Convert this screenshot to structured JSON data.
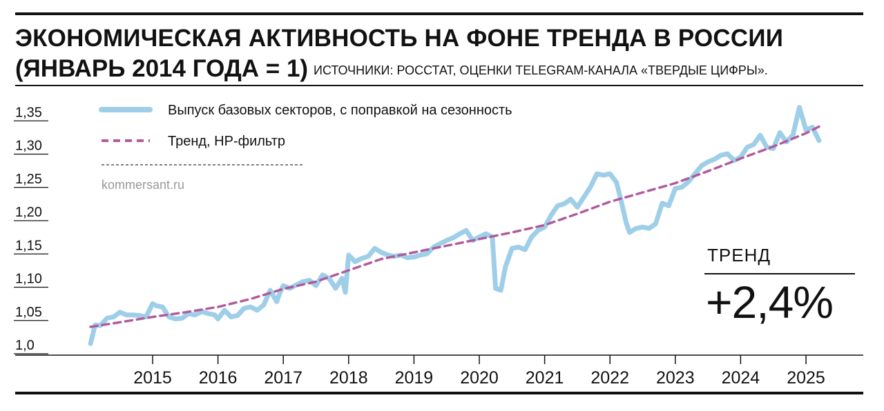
{
  "header": {
    "title": "ЭКОНОМИЧЕСКАЯ АКТИВНОСТЬ НА ФОНЕ ТРЕНДА В РОССИИ",
    "subtitle": "(ЯНВАРЬ 2014 ГОДА = 1)",
    "source": "ИСТОЧНИКИ: РОССТАТ, ОЦЕНКИ TELEGRAM-КАНАЛА «ТВЕРДЫЕ ЦИФРЫ»."
  },
  "watermark": "kommersant.ru",
  "trend_box": {
    "label": "ТРЕНД",
    "value": "+2,4%"
  },
  "colors": {
    "output": "#9fcfe8",
    "trend": "#b15a9e",
    "text": "#111111"
  },
  "chart_data": {
    "type": "line",
    "title": "",
    "xlabel": "",
    "ylabel": "",
    "xlim": [
      2014.0,
      2025.8
    ],
    "ylim": [
      1.0,
      1.37
    ],
    "y_ticks": [
      1.0,
      1.05,
      1.1,
      1.15,
      1.2,
      1.25,
      1.3,
      1.35
    ],
    "y_tick_labels": [
      "1,0",
      "1,05",
      "1,10",
      "1,15",
      "1,20",
      "1,25",
      "1,30",
      "1,35"
    ],
    "x_ticks": [
      2015,
      2016,
      2017,
      2018,
      2019,
      2020,
      2021,
      2022,
      2023,
      2024,
      2025
    ],
    "x_tick_labels": [
      "2015",
      "2016",
      "2017",
      "2018",
      "2019",
      "2020",
      "2021",
      "2022",
      "2023",
      "2024",
      "2025"
    ],
    "grid": false,
    "legend": {
      "position": "top-left"
    },
    "series": [
      {
        "name": "Выпуск базовых секторов, с поправкой на сезонность",
        "style": "solid",
        "x": [
          2014.05,
          2014.12,
          2014.2,
          2014.3,
          2014.4,
          2014.5,
          2014.6,
          2014.7,
          2014.8,
          2014.9,
          2015.0,
          2015.05,
          2015.15,
          2015.25,
          2015.35,
          2015.45,
          2015.55,
          2015.65,
          2015.75,
          2015.85,
          2015.95,
          2016.0,
          2016.1,
          2016.2,
          2016.3,
          2016.4,
          2016.5,
          2016.6,
          2016.7,
          2016.8,
          2016.9,
          2016.95,
          2017.0,
          2017.1,
          2017.2,
          2017.3,
          2017.4,
          2017.5,
          2017.6,
          2017.7,
          2017.8,
          2017.9,
          2017.95,
          2018.0,
          2018.1,
          2018.2,
          2018.3,
          2018.4,
          2018.5,
          2018.6,
          2018.7,
          2018.8,
          2018.9,
          2019.0,
          2019.1,
          2019.2,
          2019.3,
          2019.4,
          2019.5,
          2019.6,
          2019.7,
          2019.8,
          2019.9,
          2020.0,
          2020.1,
          2020.2,
          2020.25,
          2020.33,
          2020.4,
          2020.5,
          2020.6,
          2020.7,
          2020.8,
          2020.9,
          2021.0,
          2021.1,
          2021.2,
          2021.3,
          2021.4,
          2021.5,
          2021.6,
          2021.7,
          2021.8,
          2021.9,
          2022.0,
          2022.1,
          2022.17,
          2022.25,
          2022.3,
          2022.4,
          2022.5,
          2022.6,
          2022.7,
          2022.8,
          2022.9,
          2023.0,
          2023.1,
          2023.2,
          2023.3,
          2023.4,
          2023.5,
          2023.6,
          2023.7,
          2023.8,
          2023.9,
          2024.0,
          2024.1,
          2024.2,
          2024.3,
          2024.4,
          2024.5,
          2024.6,
          2024.7,
          2024.8,
          2024.9,
          2025.0,
          2025.1,
          2025.2
        ],
        "values": [
          1.005,
          1.033,
          1.032,
          1.043,
          1.045,
          1.052,
          1.048,
          1.048,
          1.047,
          1.045,
          1.065,
          1.062,
          1.06,
          1.045,
          1.042,
          1.043,
          1.05,
          1.048,
          1.053,
          1.05,
          1.048,
          1.042,
          1.055,
          1.045,
          1.047,
          1.058,
          1.06,
          1.055,
          1.063,
          1.085,
          1.068,
          1.082,
          1.092,
          1.088,
          1.093,
          1.098,
          1.1,
          1.092,
          1.108,
          1.103,
          1.088,
          1.103,
          1.082,
          1.138,
          1.128,
          1.133,
          1.136,
          1.148,
          1.142,
          1.138,
          1.136,
          1.138,
          1.134,
          1.135,
          1.138,
          1.14,
          1.15,
          1.155,
          1.16,
          1.164,
          1.17,
          1.175,
          1.16,
          1.165,
          1.17,
          1.165,
          1.088,
          1.085,
          1.12,
          1.148,
          1.15,
          1.146,
          1.165,
          1.175,
          1.18,
          1.198,
          1.212,
          1.215,
          1.222,
          1.21,
          1.225,
          1.24,
          1.26,
          1.258,
          1.26,
          1.247,
          1.22,
          1.186,
          1.172,
          1.178,
          1.18,
          1.178,
          1.185,
          1.216,
          1.212,
          1.238,
          1.24,
          1.248,
          1.26,
          1.272,
          1.278,
          1.282,
          1.288,
          1.29,
          1.28,
          1.285,
          1.3,
          1.304,
          1.318,
          1.3,
          1.298,
          1.322,
          1.308,
          1.318,
          1.36,
          1.326,
          1.33,
          1.31
        ]
      },
      {
        "name": "Тренд, HP-фильтр",
        "style": "dashed",
        "x": [
          2014.05,
          2014.5,
          2015.0,
          2015.5,
          2016.0,
          2016.5,
          2017.0,
          2017.5,
          2018.0,
          2018.5,
          2019.0,
          2019.5,
          2020.0,
          2020.5,
          2021.0,
          2021.5,
          2022.0,
          2022.5,
          2023.0,
          2023.5,
          2024.0,
          2024.5,
          2025.0,
          2025.2
        ],
        "values": [
          1.03,
          1.037,
          1.045,
          1.052,
          1.06,
          1.072,
          1.087,
          1.098,
          1.115,
          1.132,
          1.142,
          1.152,
          1.162,
          1.172,
          1.183,
          1.2,
          1.218,
          1.232,
          1.246,
          1.264,
          1.283,
          1.301,
          1.321,
          1.331
        ]
      }
    ]
  }
}
